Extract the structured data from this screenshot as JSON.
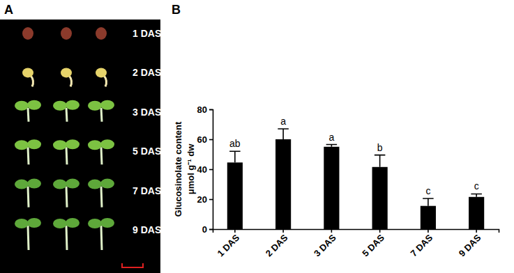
{
  "panel_labels": [
    "A",
    "B"
  ],
  "photo": {
    "stage_labels": [
      "1 DAS",
      "2 DAS",
      "3 DAS",
      "5 DAS",
      "7 DAS",
      "9 DAS"
    ]
  },
  "chart_data": {
    "type": "bar",
    "y_label": [
      "Glucosinolate content",
      "μmol g⁻¹ dw"
    ],
    "categories": [
      "1 DAS",
      "2 DAS",
      "3 DAS",
      "5 DAS",
      "7 DAS",
      "9 DAS"
    ],
    "values": [
      44.5,
      60,
      55,
      41.5,
      15.5,
      21.5
    ],
    "errors": [
      7.5,
      7,
      1.5,
      8,
      5,
      2
    ],
    "annotations": [
      "ab",
      "a",
      "a",
      "b",
      "c",
      "c"
    ],
    "color": "#000000",
    "ylim": [
      0,
      80
    ],
    "yticks": [
      0,
      20,
      40,
      60,
      80
    ],
    "grid": false
  }
}
